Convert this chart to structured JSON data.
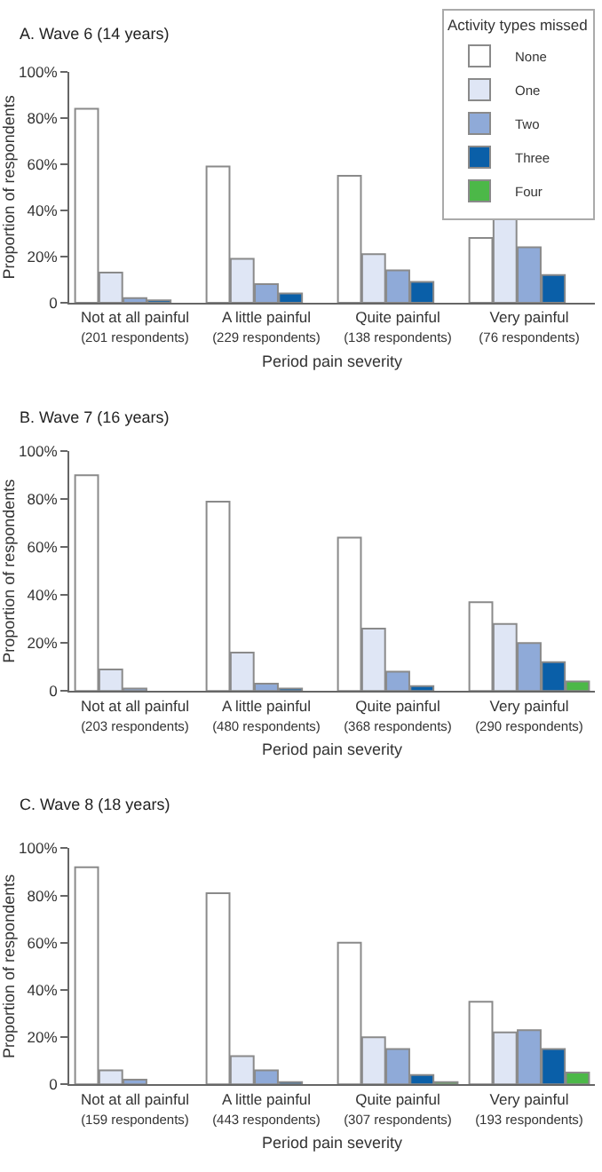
{
  "chart_data": [
    {
      "type": "bar",
      "title": "A. Wave 6 (14 years)",
      "xlabel": "Period pain severity",
      "ylabel": "Proportion of respondents",
      "legend_title": "Activity types missed",
      "legend": "top right",
      "categories": [
        "Not at all painful\n(201 respondents)",
        "A little painful\n(229 respondents)",
        "Quite painful\n(138 respondents)",
        "Very painful\n(76 respondents)"
      ],
      "ylim": [
        0,
        100
      ],
      "yticks": [
        0,
        {
          "value": 20,
          "label": "20%"
        },
        {
          "value": 40,
          "label": "40%"
        },
        {
          "value": 60,
          "label": "60%"
        },
        {
          "value": 80,
          "label": "80%"
        },
        {
          "value": 100,
          "label": "100%"
        }
      ],
      "series": [
        {
          "name": "None",
          "color": "#ffffff",
          "values": [
            84,
            59,
            55,
            28
          ]
        },
        {
          "name": "One",
          "color": "#dfe6f5",
          "values": [
            13,
            19,
            21,
            37
          ]
        },
        {
          "name": "Two",
          "color": "#8faad8",
          "values": [
            2,
            8,
            14,
            24
          ]
        },
        {
          "name": "Three",
          "color": "#0a5fa8",
          "values": [
            1,
            4,
            9,
            12
          ]
        },
        {
          "name": "Four",
          "color": "#4cb848",
          "values": [
            null,
            null,
            null,
            null
          ]
        }
      ]
    },
    {
      "type": "bar",
      "title": "B. Wave 7 (16 years)",
      "xlabel": "Period pain severity",
      "ylabel": "Proportion of respondents",
      "categories": [
        "Not at all painful\n(203 respondents)",
        "A little painful\n(480 respondents)",
        "Quite painful\n(368 respondents)",
        "Very painful\n(290 respondents)"
      ],
      "ylim": [
        0,
        100
      ],
      "yticks": [
        0,
        {
          "value": 20,
          "label": "20%"
        },
        {
          "value": 40,
          "label": "40%"
        },
        {
          "value": 60,
          "label": "60%"
        },
        {
          "value": 80,
          "label": "80%"
        },
        {
          "value": 100,
          "label": "100%"
        }
      ],
      "series": [
        {
          "color": "#ffffff",
          "values": [
            90,
            79,
            64,
            37
          ]
        },
        {
          "color": "#dfe6f5",
          "values": [
            9,
            16,
            26,
            28
          ]
        },
        {
          "color": "#8faad8",
          "values": [
            1,
            3,
            8,
            20
          ]
        },
        {
          "color": "#0a5fa8",
          "values": [
            null,
            1,
            2,
            12
          ]
        },
        {
          "color": "#4cb848",
          "values": [
            null,
            null,
            null,
            4
          ]
        }
      ]
    },
    {
      "type": "bar",
      "title": "C. Wave 8 (18 years)",
      "xlabel": "Period pain severity",
      "ylabel": "Proportion of respondents",
      "categories": [
        "Not at all painful\n(159 respondents)",
        "A little painful\n(443 respondents)",
        "Quite painful\n(307 respondents)",
        "Very painful\n(193 respondents)"
      ],
      "ylim": [
        0,
        100
      ],
      "yticks": [
        0,
        {
          "value": 20,
          "label": "20%"
        },
        {
          "value": 40,
          "label": "40%"
        },
        {
          "value": 60,
          "label": "60%"
        },
        {
          "value": 80,
          "label": "80%"
        },
        {
          "value": 100,
          "label": "100%"
        }
      ],
      "series": [
        {
          "color": "#ffffff",
          "values": [
            92,
            81,
            60,
            35
          ]
        },
        {
          "color": "#dfe6f5",
          "values": [
            6,
            12,
            20,
            22
          ]
        },
        {
          "color": "#8faad8",
          "values": [
            2,
            6,
            15,
            23
          ]
        },
        {
          "color": "#0a5fa8",
          "values": [
            null,
            1,
            4,
            15
          ]
        },
        {
          "color": "#4cb848",
          "values": [
            null,
            null,
            1,
            5
          ]
        }
      ]
    }
  ]
}
